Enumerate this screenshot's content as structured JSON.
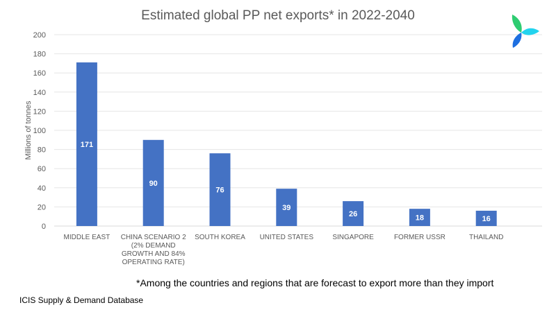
{
  "chart_data": {
    "type": "bar",
    "title": "Estimated global PP net exports* in 2022-2040",
    "ylabel": "Millions of tonnes",
    "xlabel": "",
    "ylim": [
      0,
      200
    ],
    "yticks": [
      0,
      20,
      40,
      60,
      80,
      100,
      120,
      140,
      160,
      180,
      200
    ],
    "grid": true,
    "bar_color": "#4472C4",
    "categories": [
      [
        "MIDDLE EAST"
      ],
      [
        "CHINA SCENARIO 2",
        "(2% DEMAND",
        "GROWTH AND 84%",
        "OPERATING RATE)"
      ],
      [
        "SOUTH KOREA"
      ],
      [
        "UNITED STATES"
      ],
      [
        "SINGAPORE"
      ],
      [
        "FORMER USSR"
      ],
      [
        "THAILAND"
      ]
    ],
    "values": [
      171,
      90,
      76,
      39,
      26,
      18,
      16
    ]
  },
  "footnote": "*Among the countries and regions that are forecast to export more than they import",
  "source": "ICIS Supply & Demand Database",
  "logo": {
    "icon": "icis-pinwheel-logo",
    "colors": [
      "#2ecc71",
      "#00bfff",
      "#1e6fe0"
    ]
  }
}
